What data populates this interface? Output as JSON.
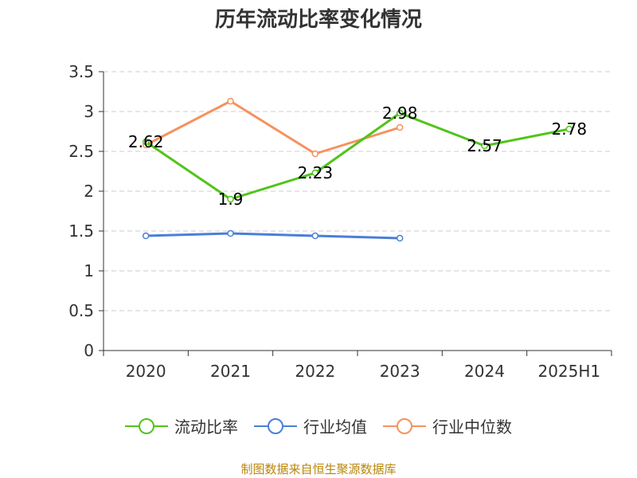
{
  "title": "历年流动比率变化情况",
  "source": "制图数据来自恒生聚源数据库",
  "chart_data": {
    "type": "line",
    "categories": [
      "2020",
      "2021",
      "2022",
      "2023",
      "2024",
      "2025H1"
    ],
    "ylim": [
      0,
      3.5
    ],
    "yticks": [
      "0",
      "0.5",
      "1",
      "1.5",
      "2",
      "2.5",
      "3",
      "3.5"
    ],
    "grid": true,
    "legend_position": "bottom",
    "series": [
      {
        "name": "流动比率",
        "color": "#52c41a",
        "values": [
          2.62,
          1.9,
          2.23,
          2.98,
          2.57,
          2.78
        ],
        "labels": [
          "2.62",
          "1.9",
          "2.23",
          "2.98",
          "2.57",
          "2.78"
        ]
      },
      {
        "name": "行业均值",
        "color": "#4a7fd8",
        "values": [
          1.44,
          1.47,
          1.44,
          1.41,
          null,
          null
        ]
      },
      {
        "name": "行业中位数",
        "color": "#f5925e",
        "values": [
          2.58,
          3.13,
          2.47,
          2.8,
          null,
          null
        ]
      }
    ]
  }
}
